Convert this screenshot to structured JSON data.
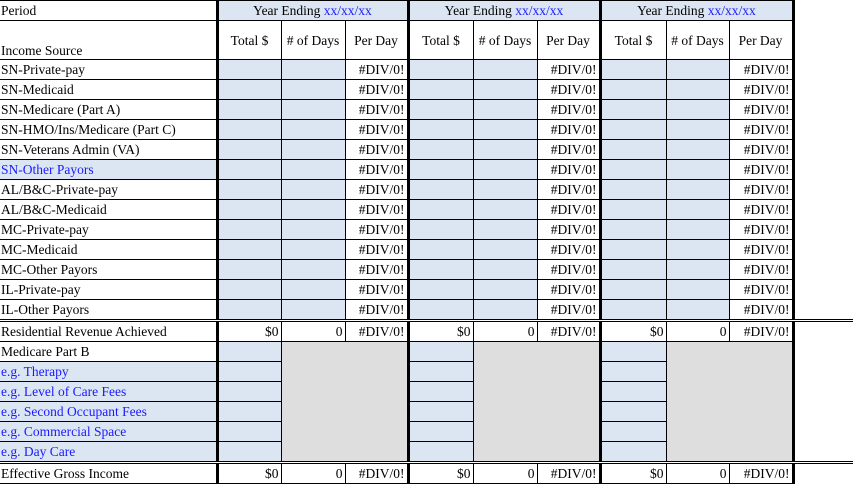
{
  "period_label": "Period",
  "income_source_label": "Income Source",
  "year_blocks": [
    {
      "prefix": "Year Ending ",
      "date": "xx/xx/xx"
    },
    {
      "prefix": "Year Ending ",
      "date": "xx/xx/xx"
    },
    {
      "prefix": "Year Ending ",
      "date": "xx/xx/xx"
    }
  ],
  "column_headers": [
    "Total $",
    "# of Days",
    "Per Day"
  ],
  "income_rows": [
    {
      "label": "SN-Private-pay",
      "per_day": "#DIV/0!"
    },
    {
      "label": "SN-Medicaid",
      "per_day": "#DIV/0!"
    },
    {
      "label": "SN-Medicare (Part A)",
      "per_day": "#DIV/0!"
    },
    {
      "label": "SN-HMO/Ins/Medicare (Part C)",
      "per_day": "#DIV/0!"
    },
    {
      "label": "SN-Veterans Admin (VA)",
      "per_day": "#DIV/0!"
    },
    {
      "label": "SN-Other Payors",
      "per_day": "#DIV/0!",
      "editable_label": true
    },
    {
      "label": "AL/B&C-Private-pay",
      "per_day": "#DIV/0!"
    },
    {
      "label": "AL/B&C-Medicaid",
      "per_day": "#DIV/0!"
    },
    {
      "label": "MC-Private-pay",
      "per_day": "#DIV/0!"
    },
    {
      "label": "MC-Medicaid",
      "per_day": "#DIV/0!"
    },
    {
      "label": "MC-Other Payors",
      "per_day": "#DIV/0!"
    },
    {
      "label": "IL-Private-pay",
      "per_day": "#DIV/0!"
    },
    {
      "label": "IL-Other Payors",
      "per_day": "#DIV/0!"
    }
  ],
  "residential_total": {
    "label": "Residential Revenue Achieved",
    "total": "$0",
    "days": "0",
    "per_day": "#DIV/0!"
  },
  "other_rows": [
    {
      "label": "Medicare Part B",
      "editable_label": false
    },
    {
      "label": "e.g. Therapy",
      "editable_label": true
    },
    {
      "label": "e.g. Level of Care Fees",
      "editable_label": true
    },
    {
      "label": "e.g. Second Occupant Fees",
      "editable_label": true
    },
    {
      "label": "e.g. Commercial Space",
      "editable_label": true
    },
    {
      "label": "e.g. Day Care",
      "editable_label": true
    }
  ],
  "effective_total": {
    "label": "Effective Gross Income",
    "total": "$0",
    "days": "0",
    "per_day": "#DIV/0!"
  },
  "colors": {
    "input_fill": "#dce6f2",
    "placeholder_text": "#1a1aff",
    "disabled_fill": "#dedede"
  }
}
